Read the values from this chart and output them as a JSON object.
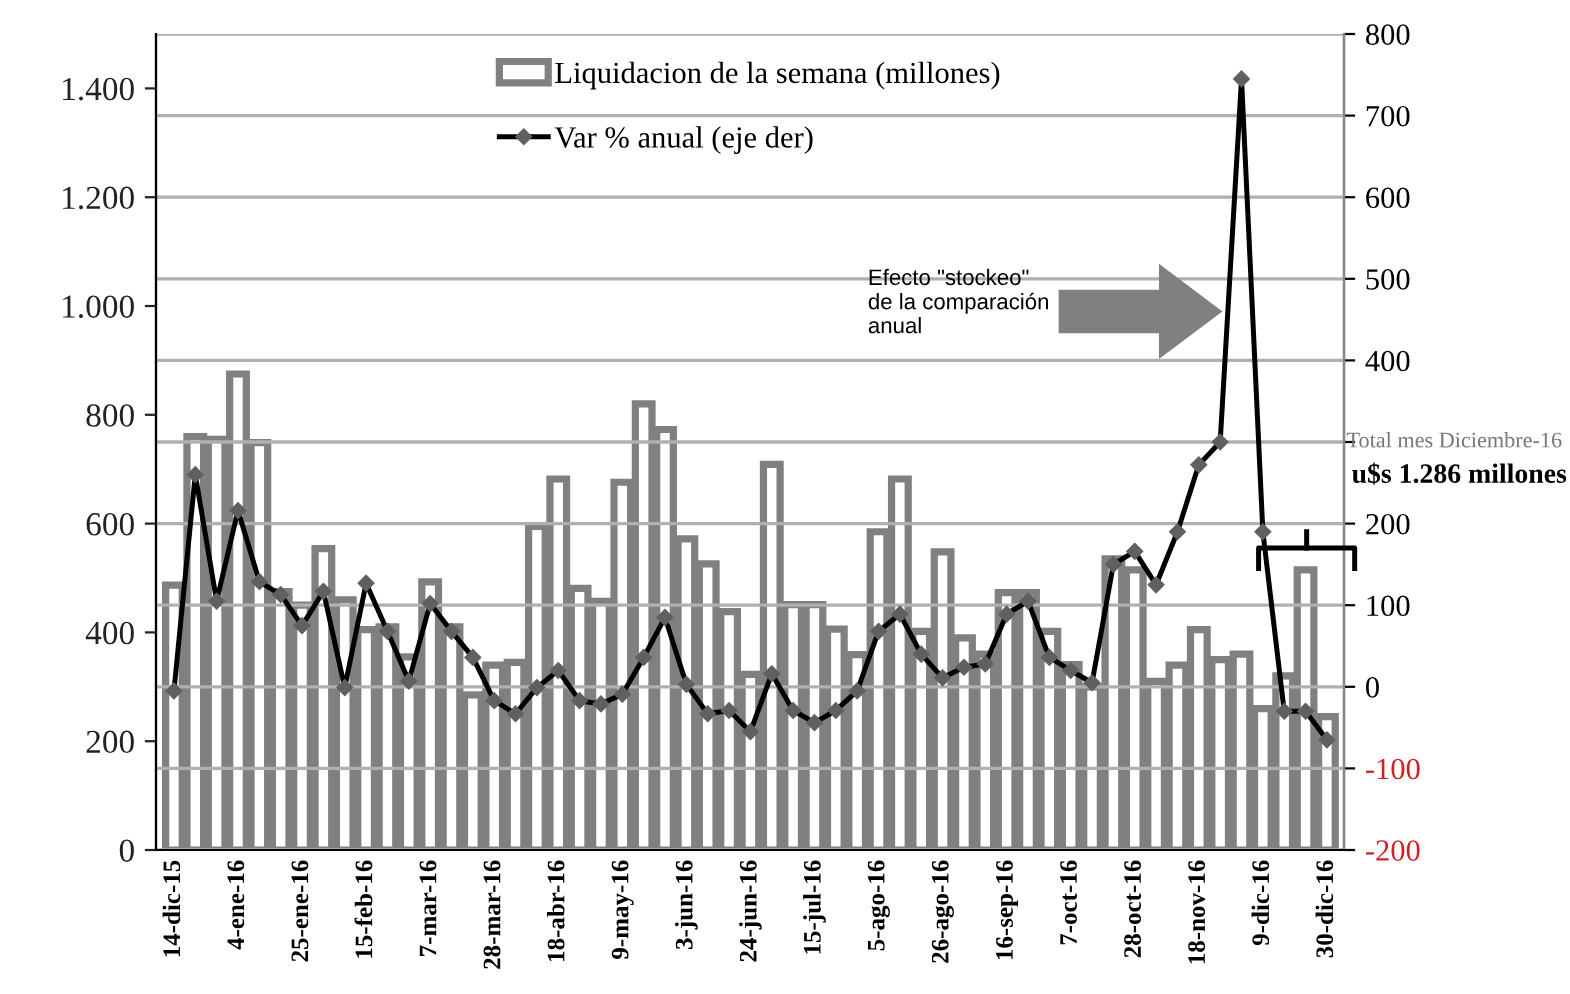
{
  "chart_data": {
    "type": "bar",
    "categories": [
      "14-dic-15",
      null,
      null,
      "4-ene-16",
      null,
      null,
      "25-ene-16",
      null,
      null,
      "15-feb-16",
      null,
      null,
      "7-mar-16",
      null,
      null,
      "28-mar-16",
      null,
      null,
      "18-abr-16",
      null,
      null,
      "9-may-16",
      null,
      null,
      "3-jun-16",
      null,
      null,
      "24-jun-16",
      null,
      null,
      "15-jul-16",
      null,
      null,
      "5-ago-16",
      null,
      null,
      "26-ago-16",
      null,
      null,
      "16-sep-16",
      null,
      null,
      "7-oct-16",
      null,
      null,
      "28-oct-16",
      null,
      null,
      "18-nov-16",
      null,
      null,
      "9-dic-16",
      null,
      null,
      "30-dic-16"
    ],
    "series": [
      {
        "name": "Liquidacion de la semana (millones)",
        "color": "#808080",
        "values": [
          487,
          760,
          755,
          875,
          749,
          475,
          450,
          554,
          460,
          405,
          410,
          355,
          493,
          410,
          285,
          340,
          345,
          595,
          682,
          481,
          457,
          676,
          820,
          773,
          572,
          526,
          438,
          323,
          709,
          451,
          451,
          406,
          359,
          585,
          682,
          402,
          548,
          390,
          360,
          473,
          473,
          402,
          341,
          300,
          535,
          515,
          310,
          340,
          405,
          350,
          360,
          260,
          320,
          515,
          245
        ]
      },
      {
        "name": "Var % anual (eje der)",
        "type": "line",
        "axis": "y2",
        "color": "#000000",
        "marker": "diamond",
        "line_style": "solid",
        "values": [
          -5,
          260,
          105,
          216,
          129,
          113,
          75,
          117,
          -1,
          127,
          68,
          7,
          102,
          68,
          36,
          -17,
          -33,
          -1,
          20,
          -17,
          -21,
          -9,
          36,
          85,
          3,
          -33,
          -29,
          -55,
          16,
          -29,
          -44,
          -29,
          -5,
          68,
          89,
          40,
          11,
          24,
          28,
          89,
          105,
          36,
          20,
          5,
          150,
          166,
          125,
          190,
          272,
          300,
          745,
          190,
          -30,
          -30,
          -65
        ]
      }
    ],
    "ylim": [
      0,
      1500
    ],
    "yticks": [
      0,
      200,
      400,
      600,
      800,
      {
        "value": 1000,
        "label": "1.000"
      },
      {
        "value": 1200,
        "label": "1.200"
      },
      {
        "value": 1400,
        "label": "1.400"
      }
    ],
    "y2lim": [
      -200,
      800
    ],
    "y2ticks": [
      -200,
      -100,
      0,
      100,
      200,
      {
        "value": 300,
        "label": null
      },
      400,
      500,
      600,
      700,
      800
    ],
    "grid": "y2",
    "legend": "top",
    "annotations": [
      "Efecto \"stockeo\"\nde la comparación\nanual",
      "Total mes Diciembre-16",
      "u$s 1.286 millones"
    ]
  }
}
